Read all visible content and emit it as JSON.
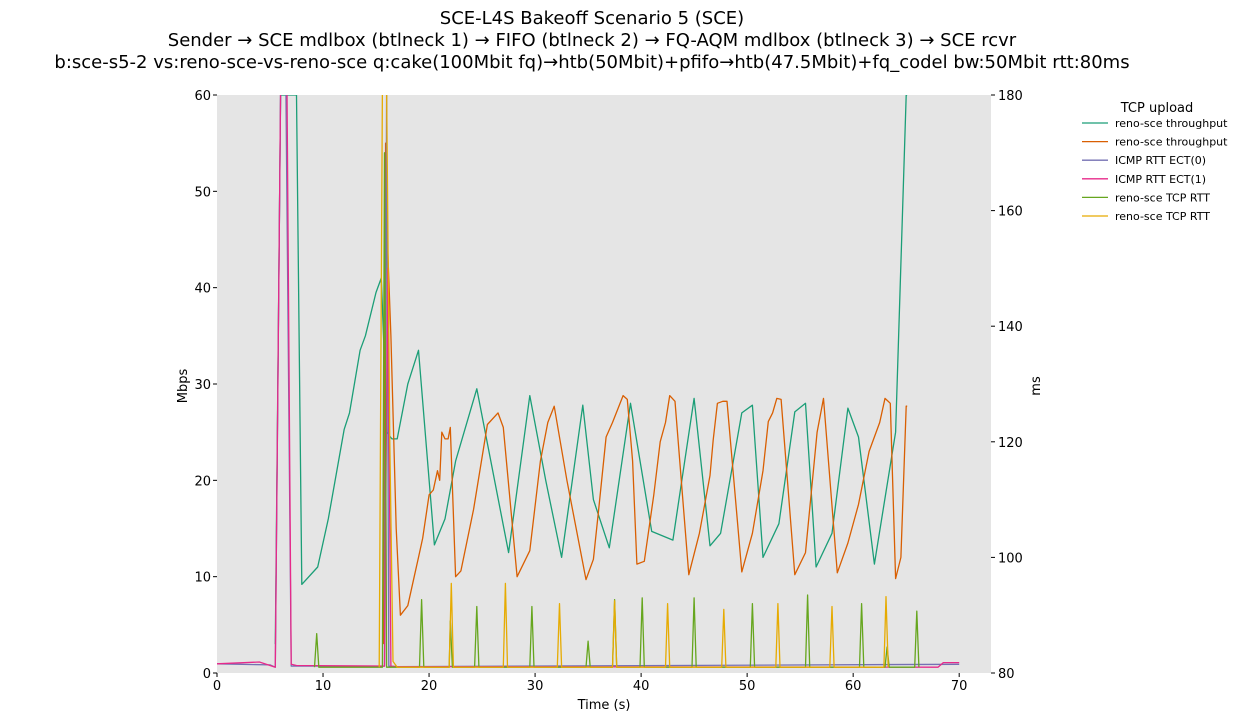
{
  "chart_data": {
    "type": "line",
    "title": "SCE-L4S Bakeoff Scenario 5 (SCE)",
    "subtitle": "Sender → SCE mdlbox (btlneck 1) → FIFO (btlneck 2) → FQ-AQM mdlbox (btlneck 3) → SCE rcvr",
    "subtitle2": "b:sce-s5-2 vs:reno-sce-vs-reno-sce q:cake(100Mbit fq)→htb(50Mbit)+pfifo→htb(47.5Mbit)+fq_codel bw:50Mbit rtt:80ms",
    "xlabel": "Time (s)",
    "ylabel": "Mbps",
    "y2label": "ms",
    "xlim": [
      0,
      73
    ],
    "ylim": [
      0,
      60
    ],
    "y2lim": [
      80,
      180
    ],
    "xticks": [
      "0",
      "10",
      "20",
      "30",
      "40",
      "50",
      "60",
      "70"
    ],
    "yticks": [
      "0",
      "10",
      "20",
      "30",
      "40",
      "50",
      "60"
    ],
    "y2ticks": [
      "80",
      "100",
      "120",
      "140",
      "160",
      "180"
    ],
    "legend_title": "TCP upload",
    "legend_position": "outside-top-right",
    "grid": false,
    "series": [
      {
        "name": "reno-sce throughput",
        "axis": "left",
        "color": "#1b9e77",
        "x": [
          5.5,
          6.0,
          6.5,
          7.0,
          7.5,
          8.0,
          9.5,
          10.5,
          12.0,
          12.5,
          13.5,
          14.0,
          15.0,
          15.5,
          15.7,
          16.0,
          16.5,
          17.0,
          18.0,
          19.0,
          20.5,
          21.5,
          22.5,
          24.5,
          26.0,
          27.5,
          29.5,
          31.0,
          32.5,
          34.5,
          35.5,
          37.0,
          39.0,
          41.0,
          43.0,
          45.0,
          46.5,
          47.5,
          49.5,
          50.5,
          51.5,
          53.0,
          54.5,
          55.5,
          56.5,
          58.0,
          59.5,
          60.5,
          62.0,
          64.0,
          65.0,
          65.1
        ],
        "values": [
          3,
          60,
          60,
          60,
          60,
          9.2,
          11,
          16,
          25.3,
          27,
          33.5,
          35,
          39.5,
          41,
          35,
          25,
          24.3,
          24.3,
          30,
          33.5,
          13.3,
          16,
          22,
          29.5,
          21,
          12.5,
          28.8,
          20,
          12,
          27.8,
          18,
          13,
          28,
          14.7,
          13.8,
          28.5,
          13.2,
          14.5,
          27,
          27.8,
          12,
          15.5,
          27.1,
          28,
          11,
          14.5,
          27.5,
          24.5,
          11.3,
          25,
          60,
          60
        ]
      },
      {
        "name": "reno-sce throughput",
        "axis": "left",
        "color": "#d95f02",
        "x": [
          15.7,
          15.9,
          16.1,
          16.4,
          16.9,
          17.3,
          18.0,
          18.6,
          19.0,
          19.4,
          20.0,
          20.4,
          20.8,
          21.0,
          21.2,
          21.5,
          21.8,
          22.0,
          22.5,
          23.0,
          24.2,
          25.5,
          26.5,
          27.0,
          28.3,
          29.5,
          30.5,
          31.2,
          31.8,
          33.0,
          34.8,
          35.5,
          36.0,
          36.7,
          37.3,
          38.3,
          38.7,
          39.2,
          39.6,
          40.3,
          41.2,
          41.8,
          42.3,
          42.7,
          43.2,
          44.5,
          45.5,
          46.5,
          46.8,
          47.2,
          47.7,
          48.1,
          49.5,
          50.5,
          51.5,
          52.0,
          52.4,
          52.8,
          53.2,
          54.5,
          55.5,
          56.6,
          57.2,
          58.5,
          59.5,
          60.5,
          61.5,
          62.5,
          63.0,
          63.5,
          64.0,
          64.5,
          65.0,
          65.1
        ],
        "values": [
          3,
          55,
          44,
          35,
          15,
          6,
          7,
          10,
          12,
          14,
          18.5,
          19,
          21,
          20,
          25,
          24.3,
          24.3,
          25.5,
          10,
          10.6,
          17,
          25.8,
          27,
          25.5,
          10,
          12.7,
          22,
          26,
          27.7,
          20,
          9.7,
          11.8,
          17,
          24.5,
          26,
          28.8,
          28.4,
          22,
          11.3,
          11.6,
          18.5,
          24,
          26,
          28.8,
          28.2,
          10.2,
          14.5,
          20.5,
          24.2,
          28,
          28.2,
          28.2,
          10.5,
          14.5,
          21,
          26.1,
          27,
          28.5,
          28.4,
          10.2,
          12.5,
          25,
          28.5,
          10.4,
          13.5,
          17.5,
          23,
          26,
          28.5,
          28,
          9.8,
          12,
          27.7,
          27.7
        ]
      },
      {
        "name": "ICMP RTT ECT(0)",
        "axis": "right",
        "color": "#7570b3",
        "x": [
          0,
          5,
          5.5,
          6,
          6.5,
          7,
          15.8,
          16,
          16.2,
          17,
          70
        ],
        "values": [
          81.6,
          81.4,
          81,
          181,
          181,
          81.2,
          81.2,
          181,
          81.2,
          81.1,
          81.5
        ]
      },
      {
        "name": "ICMP RTT ECT(1)",
        "axis": "right",
        "color": "#e7298a",
        "x": [
          0,
          4,
          5.5,
          6.0,
          6.3,
          6.6,
          7.0,
          7.5,
          15.8,
          16.1,
          16.4,
          17,
          68,
          68.5,
          70
        ],
        "values": [
          81.6,
          81.9,
          81,
          181,
          181,
          181,
          81.5,
          81.3,
          81.2,
          150,
          81.2,
          81.1,
          81.0,
          81.8,
          81.8
        ]
      },
      {
        "name": "reno-sce TCP RTT",
        "axis": "right",
        "color": "#66a61e",
        "x": [
          9.2,
          9.4,
          9.6,
          15.6,
          15.8,
          16.0,
          16.3,
          19.1,
          19.3,
          19.5,
          21.9,
          22.0,
          22.2,
          24.3,
          24.5,
          24.7,
          29.5,
          29.7,
          29.9,
          34.8,
          35.0,
          35.2,
          37.3,
          37.5,
          37.7,
          39.9,
          40.1,
          40.3,
          44.8,
          45.0,
          45.2,
          50.3,
          50.5,
          50.7,
          55.5,
          55.7,
          55.9,
          60.6,
          60.8,
          61.0,
          63.0,
          63.2,
          63.4,
          65.8,
          66.0,
          66.2
        ],
        "values": [
          81,
          86.8,
          81,
          81,
          170,
          81,
          81,
          81,
          92.7,
          81,
          81,
          89,
          81,
          81,
          91.5,
          81,
          81,
          91.5,
          81,
          81,
          85.5,
          81,
          81,
          92.7,
          81,
          81,
          93,
          81,
          81,
          93,
          81,
          81,
          92,
          81,
          81,
          93.5,
          81,
          81,
          92,
          81,
          81,
          84.5,
          81,
          81,
          90.7,
          81
        ]
      },
      {
        "name": "reno-sce TCP RTT",
        "axis": "right",
        "color": "#e6ab02",
        "x": [
          15.3,
          15.6,
          16.0,
          16.3,
          16.6,
          17,
          21.9,
          22.1,
          22.3,
          27.0,
          27.2,
          27.4,
          32.1,
          32.3,
          32.5,
          37.3,
          37.5,
          37.7,
          42.3,
          42.5,
          42.7,
          47.6,
          47.8,
          48.0,
          52.7,
          52.9,
          53.1,
          57.8,
          58.0,
          58.2,
          62.9,
          63.1,
          63.3
        ],
        "values": [
          81,
          181,
          181,
          120,
          82,
          81,
          81,
          95.5,
          81,
          81,
          95.5,
          81,
          81,
          92,
          81,
          81,
          92.5,
          81,
          81,
          92,
          81,
          81,
          91,
          81,
          81,
          92,
          81,
          81,
          91.5,
          81,
          81,
          93.2,
          81
        ]
      }
    ]
  }
}
